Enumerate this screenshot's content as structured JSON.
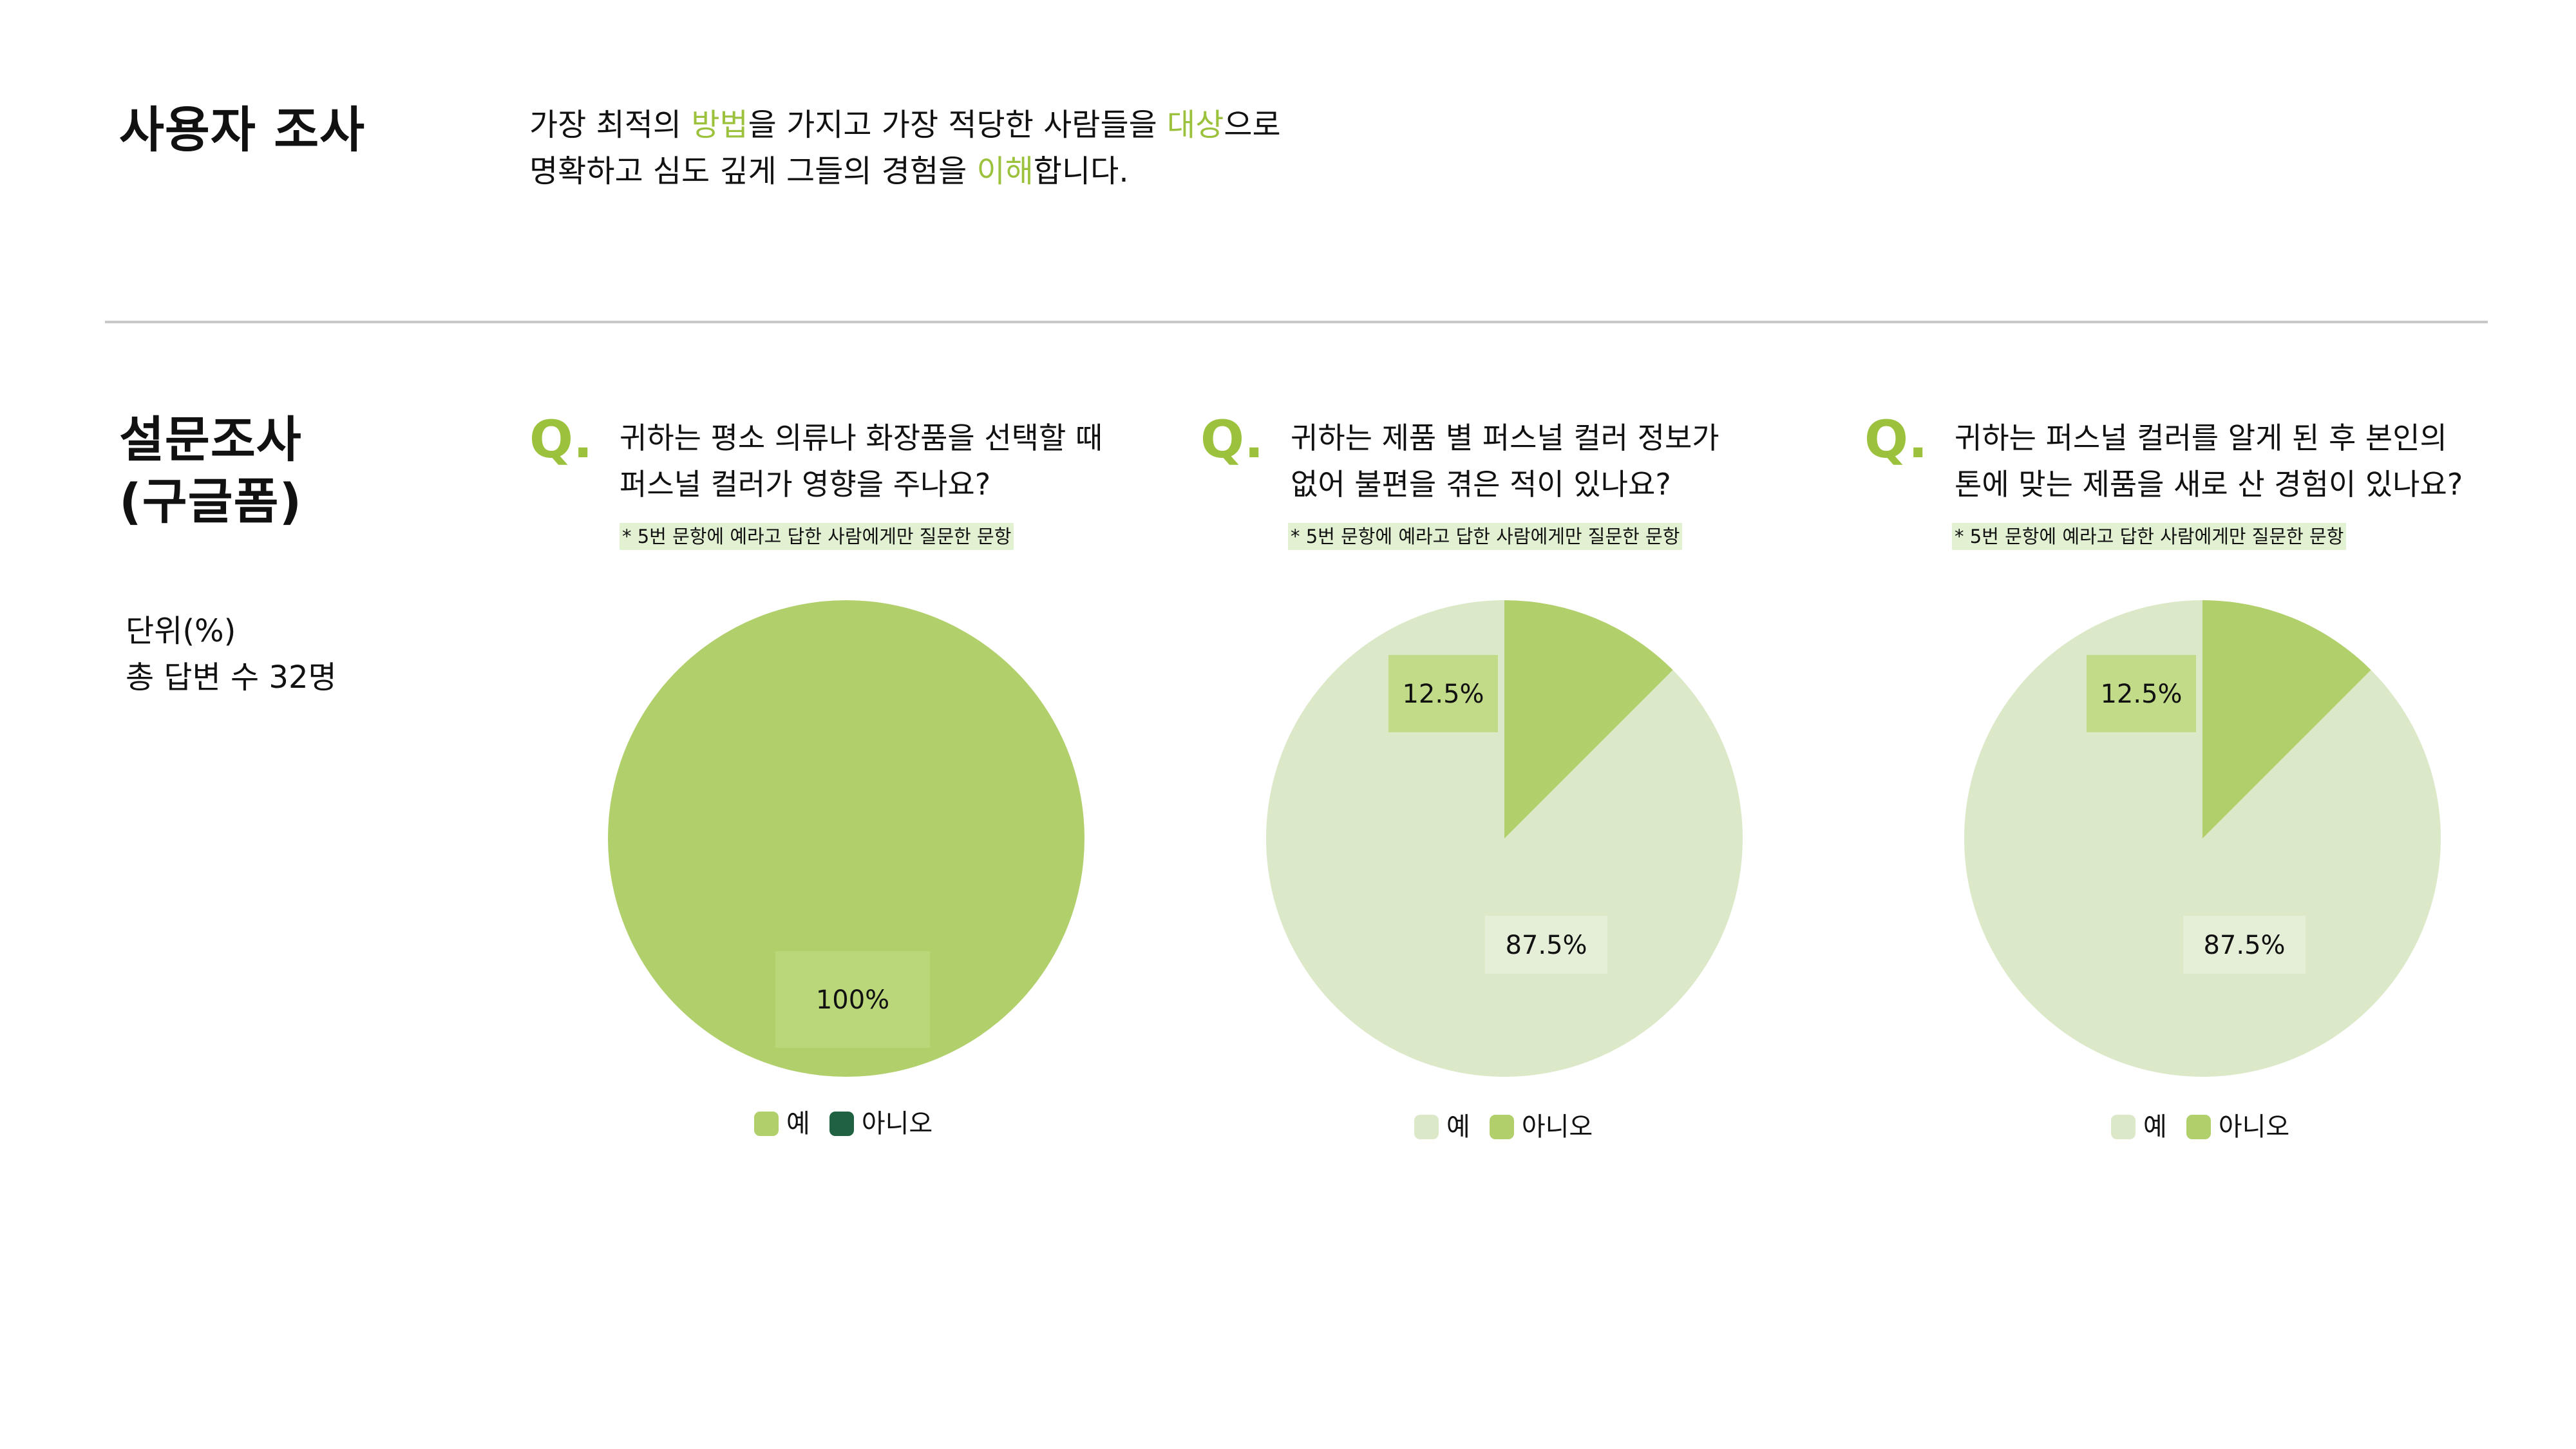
{
  "header": {
    "title": "사용자 조사",
    "intro_lines": [
      [
        {
          "t": "가장 최적의 "
        },
        {
          "t": "방법",
          "accent": true
        },
        {
          "t": "을 가지고 가장 적당한 사람들을 "
        },
        {
          "t": "대상",
          "accent": true
        },
        {
          "t": "으로"
        }
      ],
      [
        {
          "t": "명확하고 심도 깊게 그들의 경험을 "
        },
        {
          "t": "이해",
          "accent": true
        },
        {
          "t": "합니다."
        }
      ]
    ]
  },
  "survey": {
    "title_line1": "설문조사",
    "title_line2": "(구글폼)",
    "unit_label": "단위(%)",
    "total_label": "총 답변 수 32명"
  },
  "colors": {
    "accent": "#9cc23d",
    "yes_strong": "#b1cf6b",
    "yes_light": "#dce9c9",
    "no_dark": "#1f6140",
    "note_bg": "#e3f1d3",
    "label_box_mid": "#bcd87d",
    "label_box_light": "#e6efd8"
  },
  "questions": [
    {
      "q_mark": "Q.",
      "line1": "귀하는 평소 의류나 화장품을 선택할 때",
      "line2": "퍼스널 컬러가 영향을 주나요?",
      "note": "* 5번 문항에 예라고 답한 사람에게만 질문한 문항",
      "legend": [
        {
          "label": "예",
          "color": "#b1cf6b"
        },
        {
          "label": "아니오",
          "color": "#1f6140"
        }
      ]
    },
    {
      "q_mark": "Q.",
      "line1": "귀하는 제품 별 퍼스널 컬러 정보가",
      "line2": "없어 불편을 겪은 적이 있나요?",
      "note": "* 5번 문항에 예라고 답한 사람에게만 질문한 문항",
      "legend": [
        {
          "label": "예",
          "color": "#dce9c9"
        },
        {
          "label": "아니오",
          "color": "#b1cf6b"
        }
      ]
    },
    {
      "q_mark": "Q.",
      "line1": "귀하는 퍼스널 컬러를 알게 된 후 본인의",
      "line2": "톤에 맞는 제품을 새로 산 경험이 있나요?",
      "note": "* 5번 문항에 예라고 답한 사람에게만 질문한 문항",
      "legend": [
        {
          "label": "예",
          "color": "#dce9c9"
        },
        {
          "label": "아니오",
          "color": "#b1cf6b"
        }
      ]
    }
  ],
  "chart_data": [
    {
      "type": "pie",
      "title": "귀하는 평소 의류나 화장품을 선택할 때 퍼스널 컬러가 영향을 주나요?",
      "unit": "%",
      "series": [
        {
          "name": "예",
          "value": 100,
          "label": "100%",
          "color": "#b1cf6b"
        },
        {
          "name": "아니오",
          "value": 0,
          "label": "",
          "color": "#1f6140"
        }
      ]
    },
    {
      "type": "pie",
      "title": "귀하는 제품 별 퍼스널 컬러 정보가 없어 불편을 겪은 적이 있나요?",
      "unit": "%",
      "series": [
        {
          "name": "예",
          "value": 87.5,
          "label": "87.5%",
          "color": "#dce9c9"
        },
        {
          "name": "아니오",
          "value": 12.5,
          "label": "12.5%",
          "color": "#b1cf6b"
        }
      ]
    },
    {
      "type": "pie",
      "title": "귀하는 퍼스널 컬러를 알게 된 후 본인의 톤에 맞는 제품을 새로 산 경험이 있나요?",
      "unit": "%",
      "series": [
        {
          "name": "예",
          "value": 87.5,
          "label": "87.5%",
          "color": "#dce9c9"
        },
        {
          "name": "아니오",
          "value": 12.5,
          "label": "12.5%",
          "color": "#b1cf6b"
        }
      ]
    }
  ]
}
